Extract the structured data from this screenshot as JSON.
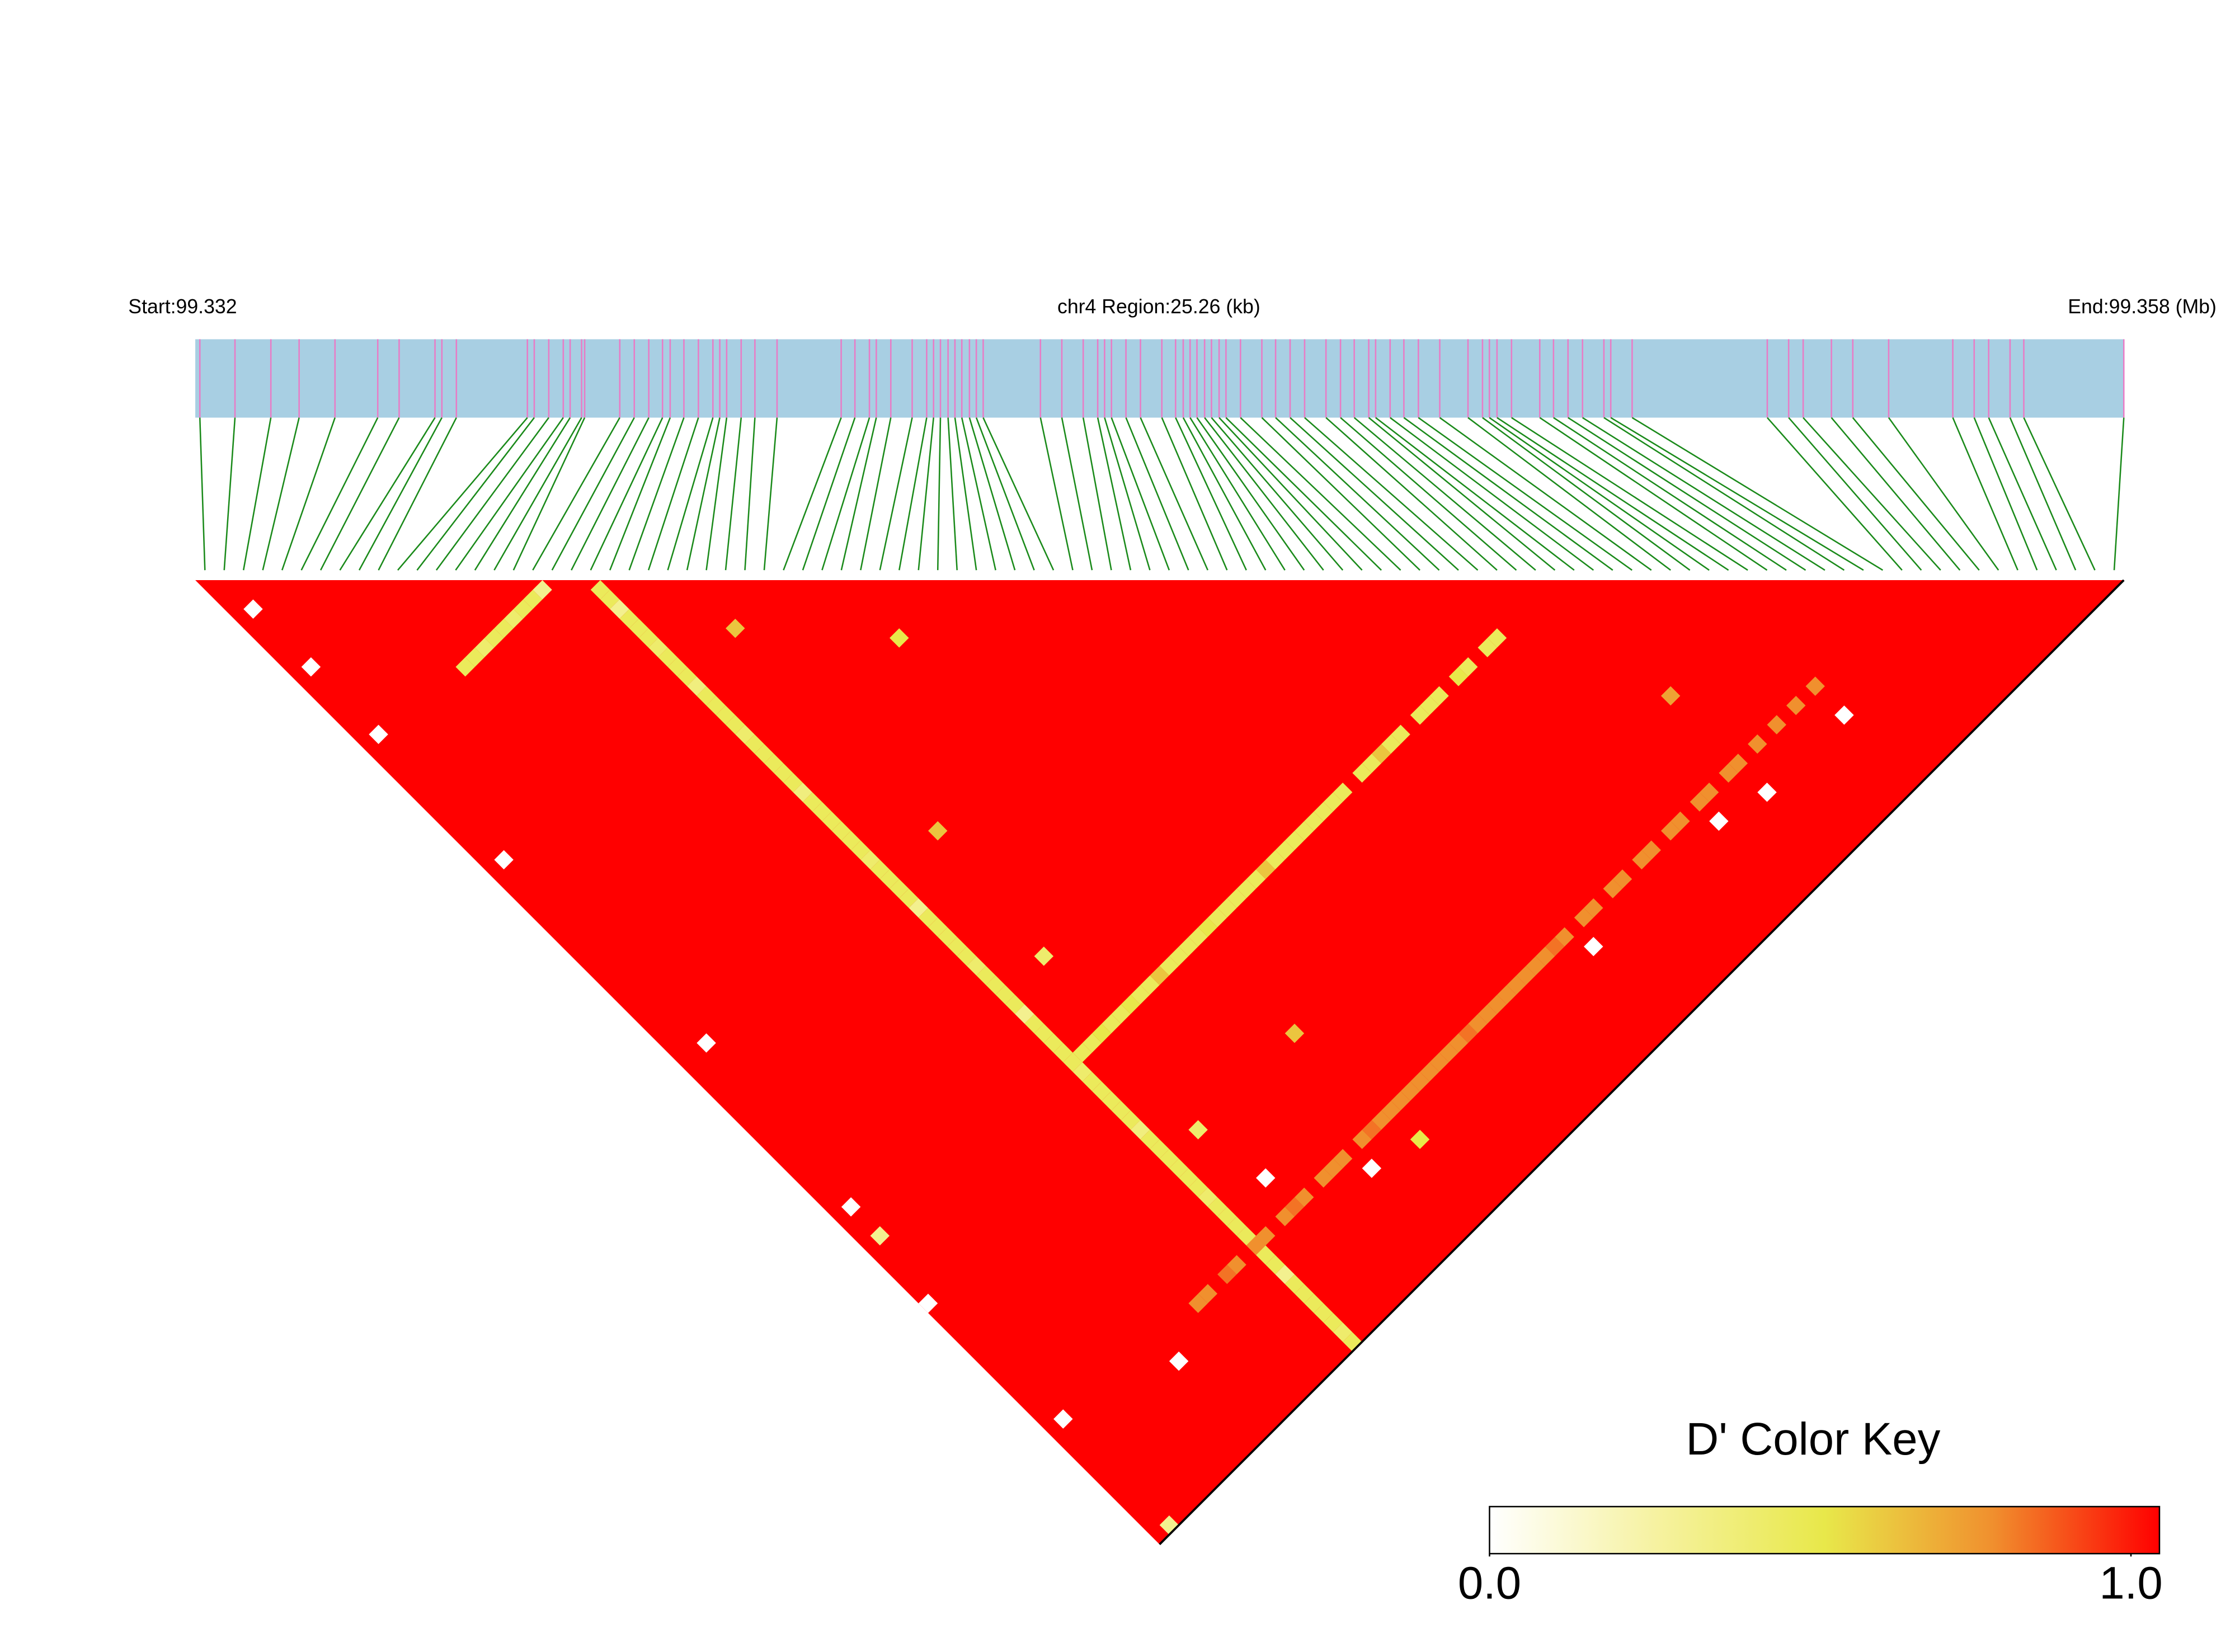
{
  "chart_data": {
    "type": "ld-heatmap",
    "start_label": "Start:99.332",
    "region_label": "chr4 Region:25.26 (kb)",
    "end_label": "End:99.358 (Mb)",
    "xlim": [
      0,
      25.26
    ],
    "snp_positions_kb": [
      0.06,
      0.52,
      0.99,
      1.36,
      1.83,
      2.39,
      2.67,
      3.14,
      3.23,
      3.42,
      4.35,
      4.44,
      4.63,
      4.82,
      4.91,
      5.06,
      5.1,
      5.56,
      5.75,
      5.94,
      6.12,
      6.22,
      6.4,
      6.59,
      6.78,
      6.87,
      6.96,
      7.15,
      7.33,
      7.62,
      8.46,
      8.64,
      8.83,
      8.92,
      9.11,
      9.39,
      9.58,
      9.67,
      9.76,
      9.86,
      9.95,
      10.04,
      10.14,
      10.23,
      10.32,
      11.07,
      11.35,
      11.63,
      11.82,
      11.91,
      12.0,
      12.19,
      12.38,
      12.66,
      12.84,
      12.94,
      13.03,
      13.12,
      13.22,
      13.31,
      13.41,
      13.5,
      13.69,
      13.97,
      14.15,
      14.34,
      14.53,
      14.81,
      15.0,
      15.18,
      15.37,
      15.46,
      15.65,
      15.83,
      16.02,
      16.3,
      16.67,
      16.86,
      16.95,
      17.05,
      17.24,
      17.61,
      17.79,
      17.98,
      18.17,
      18.45,
      18.54,
      18.82,
      20.59,
      20.87,
      21.06,
      21.43,
      21.71,
      22.18,
      23.02,
      23.3,
      23.49,
      23.77,
      23.95,
      25.26
    ],
    "bar_color": "#a8cfe3",
    "snp_color": "#e87cc6",
    "connector_color": "#1a8a1a",
    "default_value": 1,
    "cells": [
      [
        9,
        18,
        0.45
      ],
      [
        10,
        18,
        0.45
      ],
      [
        11,
        18,
        0.4
      ],
      [
        12,
        18,
        0.45
      ],
      [
        13,
        18,
        0.45
      ],
      [
        14,
        18,
        0.4
      ],
      [
        15,
        18,
        0.45
      ],
      [
        16,
        18,
        0.45
      ],
      [
        17,
        18,
        0.3
      ],
      [
        20,
        21,
        0.45
      ],
      [
        20,
        22,
        0.45
      ],
      [
        20,
        23,
        0.3
      ],
      [
        20,
        24,
        0.45
      ],
      [
        20,
        25,
        0.45
      ],
      [
        20,
        26,
        0.45
      ],
      [
        20,
        27,
        0.4
      ],
      [
        20,
        28,
        0.45
      ],
      [
        20,
        29,
        0.45
      ],
      [
        20,
        30,
        0.45
      ],
      [
        20,
        31,
        0.35
      ],
      [
        20,
        32,
        0.45
      ],
      [
        20,
        33,
        0.45
      ],
      [
        20,
        34,
        0.45
      ],
      [
        20,
        35,
        0.45
      ],
      [
        20,
        36,
        0.4
      ],
      [
        20,
        37,
        0.45
      ],
      [
        20,
        38,
        0.45
      ],
      [
        20,
        39,
        0.45
      ],
      [
        20,
        40,
        0.45
      ],
      [
        20,
        41,
        0.45
      ],
      [
        20,
        42,
        0.35
      ],
      [
        20,
        43,
        0.45
      ],
      [
        20,
        44,
        0.45
      ],
      [
        20,
        45,
        0.45
      ],
      [
        20,
        46,
        0.45
      ],
      [
        20,
        47,
        0.45
      ],
      [
        20,
        48,
        0.45
      ],
      [
        20,
        49,
        0.4
      ],
      [
        20,
        50,
        0.45
      ],
      [
        20,
        51,
        0.45
      ],
      [
        20,
        52,
        0.45
      ],
      [
        20,
        53,
        0.45
      ],
      [
        20,
        54,
        0.3
      ],
      [
        20,
        55,
        0.45
      ],
      [
        20,
        56,
        0.45
      ],
      [
        20,
        57,
        0.45
      ],
      [
        20,
        58,
        0.45
      ],
      [
        20,
        59,
        0.45
      ],
      [
        20,
        60,
        0.4
      ],
      [
        20,
        61,
        0.45
      ],
      [
        20,
        62,
        0.45
      ],
      [
        20,
        63,
        0.45
      ],
      [
        20,
        64,
        0.45
      ],
      [
        20,
        65,
        0.3
      ],
      [
        20,
        66,
        0.45
      ],
      [
        20,
        67,
        0.45
      ],
      [
        20,
        68,
        0.45
      ],
      [
        20,
        69,
        0.45
      ],
      [
        20,
        70,
        0.45
      ],
      [
        20,
        71,
        0.4
      ],
      [
        20,
        72,
        0.45
      ],
      [
        20,
        73,
        0.45
      ],
      [
        20,
        74,
        0.45
      ],
      [
        20,
        75,
        0.45
      ],
      [
        20,
        76,
        0.45
      ],
      [
        20,
        77,
        0.35
      ],
      [
        20,
        78,
        0.45
      ],
      [
        20,
        79,
        0.45
      ],
      [
        20,
        80,
        0.45
      ],
      [
        20,
        81,
        0.45
      ],
      [
        20,
        82,
        0.45
      ],
      [
        20,
        83,
        0.45
      ],
      [
        20,
        84,
        0.4
      ],
      [
        20,
        85,
        0.45
      ],
      [
        20,
        86,
        0.45
      ],
      [
        20,
        87,
        0.45
      ],
      [
        20,
        88,
        0.45
      ],
      [
        20,
        89,
        0.45
      ],
      [
        20,
        90,
        0.45
      ],
      [
        20,
        91,
        0.45
      ],
      [
        20,
        92,
        0.3
      ],
      [
        20,
        93,
        0.45
      ],
      [
        20,
        94,
        0.45
      ],
      [
        20,
        95,
        0.45
      ],
      [
        20,
        96,
        0.45
      ],
      [
        20,
        97,
        0.45
      ],
      [
        20,
        98,
        0.4
      ],
      [
        20,
        99,
        0.45
      ],
      [
        21,
        70,
        0.45
      ],
      [
        22,
        70,
        0.45
      ],
      [
        23,
        70,
        0.5
      ],
      [
        24,
        70,
        0.45
      ],
      [
        25,
        70,
        0.45
      ],
      [
        26,
        70,
        0.5
      ],
      [
        27,
        70,
        0.45
      ],
      [
        28,
        70,
        0.45
      ],
      [
        29,
        70,
        0.6
      ],
      [
        30,
        70,
        0.45
      ],
      [
        31,
        70,
        0.45
      ],
      [
        32,
        70,
        0.45
      ],
      [
        33,
        70,
        0.45
      ],
      [
        34,
        70,
        0.5
      ],
      [
        35,
        70,
        0.45
      ],
      [
        36,
        70,
        0.45
      ],
      [
        37,
        70,
        0.45
      ],
      [
        38,
        70,
        0.45
      ],
      [
        39,
        70,
        0.45
      ],
      [
        40,
        70,
        0.6
      ],
      [
        41,
        70,
        0.45
      ],
      [
        42,
        70,
        0.45
      ],
      [
        43,
        70,
        0.45
      ],
      [
        44,
        70,
        0.45
      ],
      [
        45,
        70,
        0.45
      ],
      [
        46,
        70,
        0.45
      ],
      [
        47,
        70,
        0.45
      ],
      [
        48,
        70,
        0.45
      ],
      [
        50,
        70,
        0.45
      ],
      [
        51,
        70,
        0.45
      ],
      [
        52,
        70,
        0.6
      ],
      [
        53,
        70,
        0.45
      ],
      [
        54,
        70,
        0.45
      ],
      [
        56,
        70,
        0.45
      ],
      [
        57,
        70,
        0.45
      ],
      [
        58,
        70,
        0.45
      ],
      [
        60,
        70,
        0.5
      ],
      [
        61,
        70,
        0.45
      ],
      [
        63,
        70,
        0.45
      ],
      [
        64,
        70,
        0.45
      ],
      [
        14,
        89,
        0.75
      ],
      [
        15,
        89,
        0.75
      ],
      [
        17,
        89,
        0.8
      ],
      [
        18,
        89,
        0.75
      ],
      [
        20,
        89,
        0.75
      ],
      [
        21,
        89,
        0.75
      ],
      [
        23,
        89,
        0.75
      ],
      [
        24,
        89,
        0.8
      ],
      [
        25,
        89,
        0.75
      ],
      [
        27,
        89,
        0.75
      ],
      [
        28,
        89,
        0.75
      ],
      [
        29,
        89,
        0.75
      ],
      [
        31,
        89,
        0.75
      ],
      [
        32,
        89,
        0.8
      ],
      [
        33,
        89,
        0.75
      ],
      [
        34,
        89,
        0.75
      ],
      [
        35,
        89,
        0.75
      ],
      [
        36,
        89,
        0.75
      ],
      [
        37,
        89,
        0.75
      ],
      [
        38,
        89,
        0.75
      ],
      [
        39,
        89,
        0.75
      ],
      [
        40,
        89,
        0.75
      ],
      [
        41,
        89,
        0.75
      ],
      [
        42,
        89,
        0.8
      ],
      [
        43,
        89,
        0.75
      ],
      [
        44,
        89,
        0.75
      ],
      [
        45,
        89,
        0.75
      ],
      [
        46,
        89,
        0.75
      ],
      [
        47,
        89,
        0.75
      ],
      [
        48,
        89,
        0.75
      ],
      [
        49,
        89,
        0.75
      ],
      [
        50,
        89,
        0.75
      ],
      [
        51,
        89,
        0.8
      ],
      [
        52,
        89,
        0.75
      ],
      [
        54,
        89,
        0.75
      ],
      [
        55,
        89,
        0.75
      ],
      [
        57,
        89,
        0.75
      ],
      [
        58,
        89,
        0.75
      ],
      [
        60,
        89,
        0.75
      ],
      [
        61,
        89,
        0.75
      ],
      [
        63,
        89,
        0.75
      ],
      [
        64,
        89,
        0.75
      ],
      [
        66,
        89,
        0.75
      ],
      [
        67,
        89,
        0.75
      ],
      [
        69,
        89,
        0.75
      ],
      [
        70,
        89,
        0.75
      ],
      [
        72,
        89,
        0.75
      ],
      [
        74,
        89,
        0.75
      ],
      [
        76,
        89,
        0.75
      ],
      [
        78,
        89,
        0.75
      ],
      [
        1,
        10,
        0
      ],
      [
        1,
        4,
        0
      ],
      [
        1,
        17,
        0
      ],
      [
        1,
        30,
        0
      ],
      [
        2,
        50,
        0
      ],
      [
        1,
        66,
        0
      ],
      [
        1,
        69,
        0.3
      ],
      [
        0,
        75,
        0
      ],
      [
        1,
        88,
        0
      ],
      [
        1,
        99,
        0.3
      ],
      [
        70,
        92,
        0
      ],
      [
        78,
        92,
        0
      ],
      [
        66,
        91,
        0
      ],
      [
        23,
        80,
        0.4
      ],
      [
        24,
        86,
        0
      ],
      [
        30,
        91,
        0
      ],
      [
        53,
        91,
        0
      ],
      [
        24,
        63,
        0.4
      ],
      [
        10,
        91,
        0
      ],
      [
        33,
        39,
        0.5
      ],
      [
        25,
        30,
        0.6
      ],
      [
        70,
        82,
        0.7
      ],
      [
        34,
        92,
        0.5
      ],
      [
        25,
        51,
        0.6
      ],
      [
        33,
        80,
        0.6
      ]
    ],
    "colorscale": [
      "#ffffff",
      "#f6f2a0",
      "#e8e84a",
      "#f0902e",
      "#ff0000"
    ],
    "key_title": "D' Color Key",
    "key_ticks": [
      {
        "value": 0,
        "label": "0.0"
      },
      {
        "value": 1,
        "label": "1.0"
      }
    ]
  }
}
